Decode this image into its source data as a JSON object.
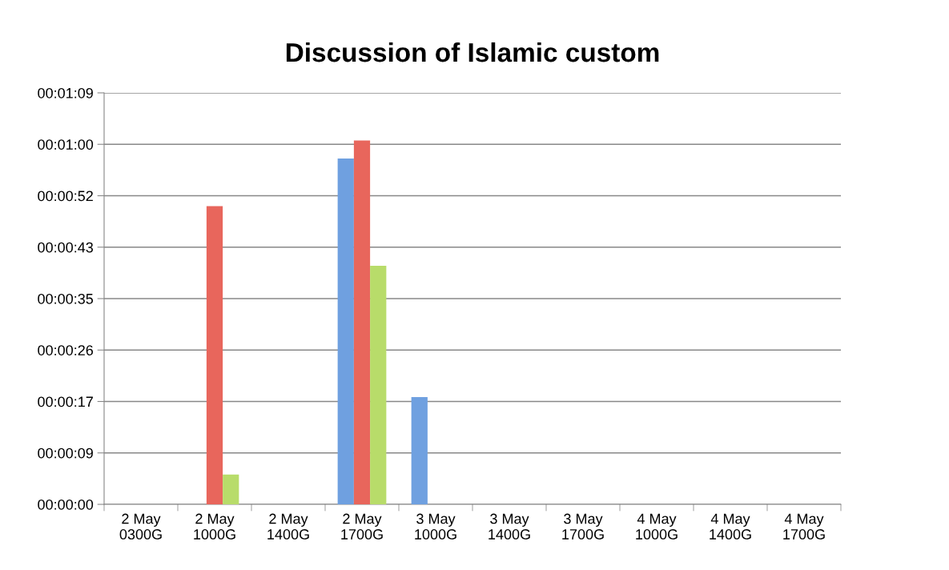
{
  "chart_data": {
    "type": "bar",
    "title": "Discussion of Islamic custom",
    "categories": [
      "2 May\n0300G",
      "2 May\n1000G",
      "2 May\n1400G",
      "2 May\n1700G",
      "3 May\n1000G",
      "3 May\n1400G",
      "3 May\n1700G",
      "4 May\n1000G",
      "4 May\n1400G",
      "4 May\n1700G"
    ],
    "series": [
      {
        "color": "#6fa0e0",
        "values": [
          0,
          0,
          0,
          58,
          18,
          0,
          0,
          0,
          0,
          0
        ]
      },
      {
        "color": "#e8665c",
        "values": [
          0,
          50,
          0,
          61,
          0,
          0,
          0,
          0,
          0,
          0
        ]
      },
      {
        "color": "#b8dc6a",
        "values": [
          0,
          5,
          0,
          40,
          0,
          0,
          0,
          0,
          0,
          0
        ]
      }
    ],
    "ylim": [
      0,
      69
    ],
    "yticks": [
      {
        "value": 0,
        "label": "00:00:00"
      },
      {
        "value": 8.625,
        "label": "00:00:09"
      },
      {
        "value": 17.25,
        "label": "00:00:17"
      },
      {
        "value": 25.875,
        "label": "00:00:26"
      },
      {
        "value": 34.5,
        "label": "00:00:35"
      },
      {
        "value": 43.125,
        "label": "00:00:43"
      },
      {
        "value": 51.75,
        "label": "00:00:52"
      },
      {
        "value": 60.375,
        "label": "00:01:00"
      },
      {
        "value": 69,
        "label": "00:01:09"
      }
    ],
    "grid": "y"
  }
}
